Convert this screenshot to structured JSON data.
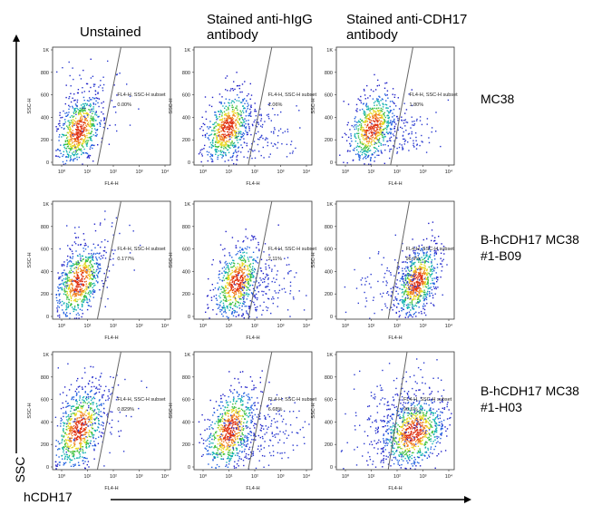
{
  "column_headers": [
    "Unstained",
    "Stained anti-hIgG\nantibody",
    "Stained anti-CDH17\nantibody"
  ],
  "row_labels": [
    "MC38",
    "B-hCDH17 MC38\n #1-B09",
    "B-hCDH17 MC38\n #1-H03"
  ],
  "overall_axes": {
    "x_label": "hCDH17",
    "y_label": "SSC"
  },
  "chart_data": {
    "type": "scatter",
    "subtype": "flow-cytometry-density-dot-plot",
    "x_axis": {
      "label": "FL4-H",
      "scale": "log",
      "ticks": [
        "10⁰",
        "10¹",
        "10²",
        "10³",
        "10⁴"
      ]
    },
    "y_axis": {
      "label": "SSC-H",
      "range": [
        0,
        1000
      ],
      "ticks": [
        "0",
        "200",
        "400",
        "600",
        "800",
        "1K"
      ]
    },
    "gate_name": "FL4-H, SSC-H subset",
    "panels": [
      {
        "row": "MC38",
        "column": "Unstained",
        "gate_percent": "0.00%"
      },
      {
        "row": "MC38",
        "column": "Stained anti-hIgG antibody",
        "gate_percent": "1.06%"
      },
      {
        "row": "MC38",
        "column": "Stained anti-CDH17 antibody",
        "gate_percent": "1.80%"
      },
      {
        "row": "B-hCDH17 MC38 #1-B09",
        "column": "Unstained",
        "gate_percent": "0.177%"
      },
      {
        "row": "B-hCDH17 MC38 #1-B09",
        "column": "Stained anti-hIgG antibody",
        "gate_percent": "2.11%"
      },
      {
        "row": "B-hCDH17 MC38 #1-B09",
        "column": "Stained anti-CDH17 antibody",
        "gate_percent": "96.9%"
      },
      {
        "row": "B-hCDH17 MC38 #1-H03",
        "column": "Unstained",
        "gate_percent": "0.829%"
      },
      {
        "row": "B-hCDH17 MC38 #1-H03",
        "column": "Stained anti-hIgG antibody",
        "gate_percent": "6.68%"
      },
      {
        "row": "B-hCDH17 MC38 #1-H03",
        "column": "Stained anti-CDH17 antibody",
        "gate_percent": "90.6%"
      }
    ]
  }
}
